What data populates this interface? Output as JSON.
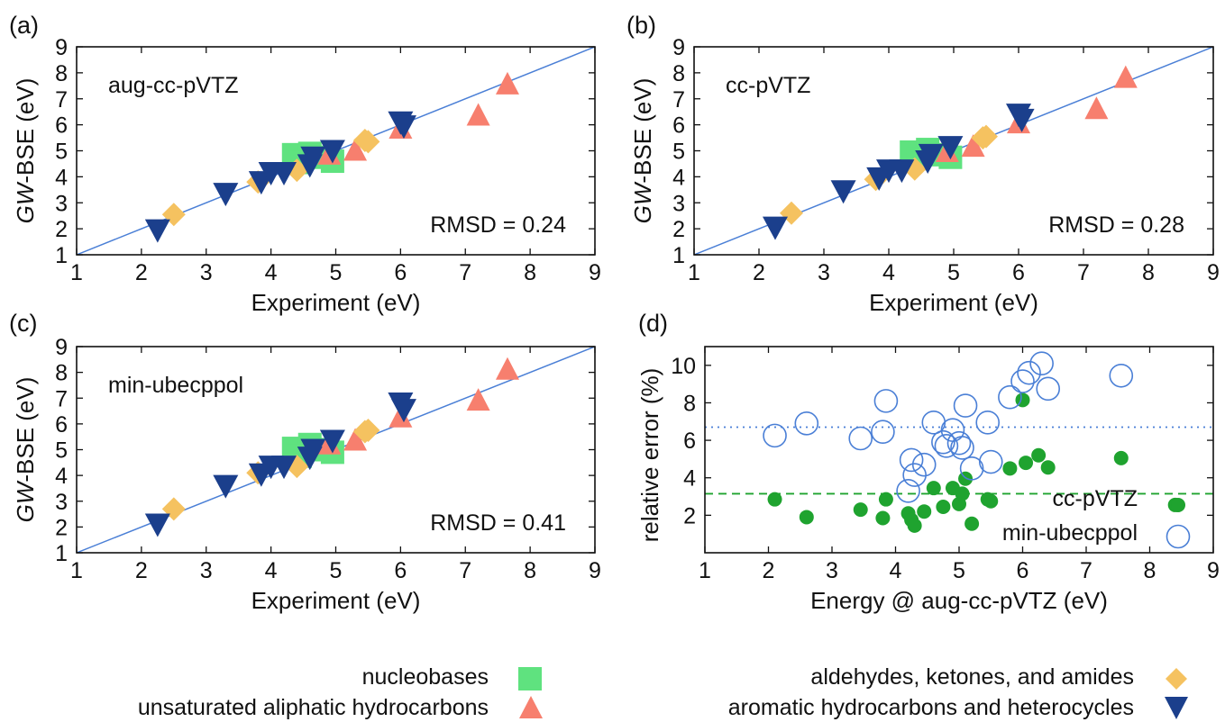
{
  "colors": {
    "nucleobases": "#5fe27f",
    "aliphatic": "#f77f6e",
    "carbonyl": "#f5c260",
    "aromatic": "#1b3f8c",
    "diagonal": "#4a7fd6",
    "min_open": "#4a7fd6",
    "cc_filled": "#1fa32f",
    "cc_mean_line": "#1fa32f",
    "min_mean_line": "#4a7fd6"
  },
  "legend": {
    "nucleobases": "nucleobases",
    "aliphatic": "unsaturated aliphatic hydrocarbons",
    "carbonyl": "aldehydes, ketones, and amides",
    "aromatic": "aromatic hydrocarbons and heterocycles"
  },
  "chart_data": [
    {
      "panel": "(a)",
      "type": "scatter",
      "basis_label": "aug-cc-pVTZ",
      "rmsd_label": "RMSD = 0.24",
      "xlabel": "Experiment (eV)",
      "ylabel_italic": "GW",
      "ylabel_rest": "-BSE (eV)",
      "xlim": [
        1,
        9
      ],
      "ylim": [
        1,
        9
      ],
      "xticks": [
        "1",
        "2",
        "3",
        "4",
        "5",
        "6",
        "7",
        "8",
        "9"
      ],
      "yticks": [
        "1",
        "2",
        "3",
        "4",
        "5",
        "6",
        "7",
        "8",
        "9"
      ],
      "series": [
        {
          "name": "nucleobases",
          "marker": "square",
          "points": [
            [
              4.35,
              4.85
            ],
            [
              4.6,
              4.9
            ],
            [
              4.45,
              4.55
            ],
            [
              4.75,
              4.75
            ],
            [
              4.95,
              4.6
            ]
          ]
        },
        {
          "name": "unsaturated aliphatic hydrocarbons",
          "marker": "triangle-up",
          "points": [
            [
              4.9,
              4.85
            ],
            [
              5.3,
              5.0
            ],
            [
              6.0,
              5.85
            ],
            [
              7.2,
              6.35
            ],
            [
              7.65,
              7.55
            ]
          ]
        },
        {
          "name": "aldehydes, ketones, and amides",
          "marker": "diamond",
          "points": [
            [
              2.5,
              2.55
            ],
            [
              3.8,
              3.8
            ],
            [
              4.4,
              4.25
            ],
            [
              5.5,
              5.35
            ],
            [
              5.45,
              5.4
            ]
          ]
        },
        {
          "name": "aromatic hydrocarbons and heterocycles",
          "marker": "triangle-down",
          "points": [
            [
              2.25,
              1.95
            ],
            [
              3.3,
              3.35
            ],
            [
              3.85,
              3.8
            ],
            [
              4.0,
              4.15
            ],
            [
              4.2,
              4.15
            ],
            [
              4.6,
              4.45
            ],
            [
              4.65,
              4.75
            ],
            [
              4.95,
              5.0
            ],
            [
              6.0,
              6.1
            ],
            [
              6.05,
              5.95
            ]
          ]
        }
      ]
    },
    {
      "panel": "(b)",
      "type": "scatter",
      "basis_label": "cc-pVTZ",
      "rmsd_label": "RMSD = 0.28",
      "xlabel": "Experiment (eV)",
      "ylabel_italic": "GW",
      "ylabel_rest": "-BSE (eV)",
      "xlim": [
        1,
        9
      ],
      "ylim": [
        1,
        9
      ],
      "xticks": [
        "1",
        "2",
        "3",
        "4",
        "5",
        "6",
        "7",
        "8",
        "9"
      ],
      "yticks": [
        "1",
        "2",
        "3",
        "4",
        "5",
        "6",
        "7",
        "8",
        "9"
      ],
      "series": [
        {
          "name": "nucleobases",
          "marker": "square",
          "points": [
            [
              4.35,
              4.95
            ],
            [
              4.6,
              5.05
            ],
            [
              4.45,
              4.7
            ],
            [
              4.75,
              4.85
            ],
            [
              4.95,
              4.75
            ]
          ]
        },
        {
          "name": "unsaturated aliphatic hydrocarbons",
          "marker": "triangle-up",
          "points": [
            [
              4.9,
              4.95
            ],
            [
              5.3,
              5.15
            ],
            [
              6.0,
              6.05
            ],
            [
              7.2,
              6.6
            ],
            [
              7.65,
              7.8
            ]
          ]
        },
        {
          "name": "aldehydes, ketones, and amides",
          "marker": "diamond",
          "points": [
            [
              2.5,
              2.6
            ],
            [
              3.8,
              3.9
            ],
            [
              4.4,
              4.3
            ],
            [
              5.5,
              5.55
            ],
            [
              5.45,
              5.5
            ]
          ]
        },
        {
          "name": "aromatic hydrocarbons and heterocycles",
          "marker": "triangle-down",
          "points": [
            [
              2.25,
              2.05
            ],
            [
              3.3,
              3.45
            ],
            [
              3.85,
              3.95
            ],
            [
              4.0,
              4.25
            ],
            [
              4.2,
              4.25
            ],
            [
              4.6,
              4.6
            ],
            [
              4.65,
              4.85
            ],
            [
              4.95,
              5.15
            ],
            [
              6.0,
              6.4
            ],
            [
              6.05,
              6.2
            ]
          ]
        }
      ]
    },
    {
      "panel": "(c)",
      "type": "scatter",
      "basis_label": "min-ubecppol",
      "rmsd_label": "RMSD = 0.41",
      "xlabel": "Experiment (eV)",
      "ylabel_italic": "GW",
      "ylabel_rest": "-BSE (eV)",
      "xlim": [
        1,
        9
      ],
      "ylim": [
        1,
        9
      ],
      "xticks": [
        "1",
        "2",
        "3",
        "4",
        "5",
        "6",
        "7",
        "8",
        "9"
      ],
      "yticks": [
        "1",
        "2",
        "3",
        "4",
        "5",
        "6",
        "7",
        "8",
        "9"
      ],
      "series": [
        {
          "name": "nucleobases",
          "marker": "square",
          "points": [
            [
              4.35,
              5.05
            ],
            [
              4.6,
              5.2
            ],
            [
              4.45,
              4.75
            ],
            [
              4.75,
              5.0
            ],
            [
              4.95,
              4.9
            ]
          ]
        },
        {
          "name": "unsaturated aliphatic hydrocarbons",
          "marker": "triangle-up",
          "points": [
            [
              4.9,
              5.2
            ],
            [
              5.3,
              5.35
            ],
            [
              6.0,
              6.25
            ],
            [
              7.2,
              6.9
            ],
            [
              7.65,
              8.1
            ]
          ]
        },
        {
          "name": "aldehydes, ketones, and amides",
          "marker": "diamond",
          "points": [
            [
              2.5,
              2.7
            ],
            [
              3.8,
              4.1
            ],
            [
              4.4,
              4.35
            ],
            [
              5.5,
              5.75
            ],
            [
              5.45,
              5.7
            ]
          ]
        },
        {
          "name": "aromatic hydrocarbons and heterocycles",
          "marker": "triangle-down",
          "points": [
            [
              2.25,
              2.1
            ],
            [
              3.3,
              3.6
            ],
            [
              3.85,
              4.05
            ],
            [
              4.0,
              4.35
            ],
            [
              4.2,
              4.35
            ],
            [
              4.6,
              4.7
            ],
            [
              4.65,
              5.0
            ],
            [
              4.95,
              5.35
            ],
            [
              6.0,
              6.8
            ],
            [
              6.05,
              6.55
            ]
          ]
        }
      ]
    },
    {
      "panel": "(d)",
      "type": "scatter",
      "xlabel": "Energy @ aug-cc-pVTZ (eV)",
      "ylabel": "relative error (%)",
      "xlim": [
        1,
        9
      ],
      "ylim": [
        0,
        11
      ],
      "xticks": [
        "1",
        "2",
        "3",
        "4",
        "5",
        "6",
        "7",
        "8",
        "9"
      ],
      "yticks": [
        {
          "v": 2,
          "t": "2"
        },
        {
          "v": 4,
          "t": "4"
        },
        {
          "v": 6,
          "t": "6"
        },
        {
          "v": 8,
          "t": "8"
        },
        {
          "v": 10,
          "t": "10"
        }
      ],
      "mean_lines": {
        "cc-pVTZ": 3.15,
        "min-ubecppol": 6.7
      },
      "series": [
        {
          "name": "cc-pVTZ",
          "marker": "filled-circle",
          "points": [
            [
              2.1,
              2.85
            ],
            [
              2.6,
              1.9
            ],
            [
              3.45,
              2.3
            ],
            [
              3.8,
              1.85
            ],
            [
              3.85,
              2.85
            ],
            [
              4.2,
              2.1
            ],
            [
              4.25,
              1.75
            ],
            [
              4.3,
              1.45
            ],
            [
              4.45,
              2.2
            ],
            [
              4.6,
              3.45
            ],
            [
              4.75,
              2.45
            ],
            [
              4.9,
              3.45
            ],
            [
              5.0,
              2.6
            ],
            [
              5.05,
              3.15
            ],
            [
              5.1,
              3.95
            ],
            [
              5.2,
              1.55
            ],
            [
              5.45,
              2.85
            ],
            [
              5.5,
              2.75
            ],
            [
              5.8,
              4.5
            ],
            [
              6.0,
              8.15
            ],
            [
              6.05,
              4.8
            ],
            [
              6.25,
              5.2
            ],
            [
              6.4,
              4.55
            ],
            [
              7.55,
              5.05
            ],
            [
              8.4,
              2.55
            ]
          ]
        },
        {
          "name": "min-ubecppol",
          "marker": "open-circle",
          "points": [
            [
              2.1,
              6.25
            ],
            [
              2.6,
              6.9
            ],
            [
              3.45,
              6.1
            ],
            [
              3.8,
              6.45
            ],
            [
              3.85,
              8.1
            ],
            [
              4.2,
              3.3
            ],
            [
              4.25,
              4.95
            ],
            [
              4.3,
              4.15
            ],
            [
              4.45,
              4.7
            ],
            [
              4.6,
              6.95
            ],
            [
              4.75,
              5.9
            ],
            [
              4.9,
              6.55
            ],
            [
              5.0,
              5.85
            ],
            [
              5.05,
              5.6
            ],
            [
              5.1,
              7.85
            ],
            [
              5.2,
              4.5
            ],
            [
              5.45,
              6.95
            ],
            [
              5.5,
              4.85
            ],
            [
              5.8,
              8.3
            ],
            [
              6.0,
              9.15
            ],
            [
              6.1,
              9.6
            ],
            [
              6.3,
              10.1
            ],
            [
              6.4,
              8.75
            ],
            [
              7.55,
              9.45
            ],
            [
              4.8,
              5.7
            ]
          ]
        }
      ],
      "legend_cc": "cc-pVTZ",
      "legend_min": "min-ubecppol"
    }
  ]
}
